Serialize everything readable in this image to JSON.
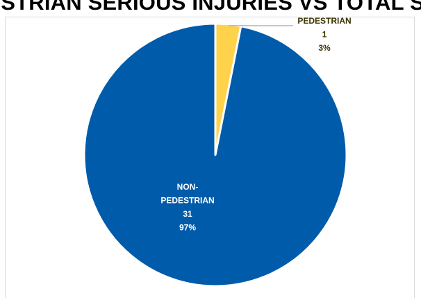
{
  "chart_data": {
    "type": "pie",
    "title": "PEDESTRIAN SERIOUS INJURIES VS TOTAL SERIOUS INJURIES",
    "categories": [
      "PEDESTRIAN",
      "NON-PEDESTRIAN"
    ],
    "values": [
      1,
      31
    ],
    "percent_labels": [
      "3%",
      "97%"
    ],
    "colors": [
      "#FFD24C",
      "#005BAA"
    ],
    "label_colors": [
      "#3A3300",
      "#FFFFFF"
    ],
    "label_lines": [
      [
        "PEDESTRIAN",
        "1",
        "3%"
      ],
      [
        "NON-",
        "PEDESTRIAN",
        "31",
        "97%"
      ]
    ],
    "label_placement": [
      "outside-top-right",
      "inside"
    ],
    "legend": "none",
    "start_angle": "12 o'clock",
    "direction": "clockwise"
  }
}
